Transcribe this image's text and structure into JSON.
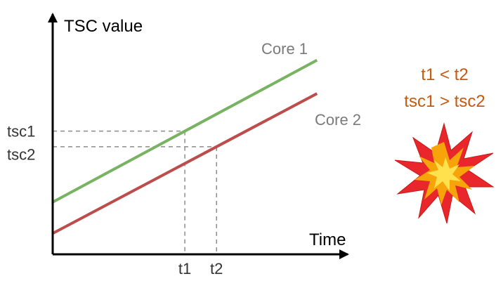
{
  "chart_data": {
    "type": "line",
    "title": "",
    "ylabel": "TSC value",
    "xlabel": "Time",
    "series": [
      {
        "name": "Core 1",
        "color": "#77b361",
        "x": [
          0,
          1
        ],
        "y": [
          0.25,
          0.93
        ]
      },
      {
        "name": "Core 2",
        "color": "#bd4c4c",
        "x": [
          0,
          1
        ],
        "y": [
          0.1,
          0.77
        ]
      }
    ],
    "x_ticks": [
      {
        "label": "t1",
        "value": 0.5
      },
      {
        "label": "t2",
        "value": 0.62
      }
    ],
    "y_ticks": [
      {
        "label": "tsc1",
        "value": 0.59
      },
      {
        "label": "tsc2",
        "value": 0.48
      }
    ],
    "xlim": [
      0,
      1.05
    ],
    "ylim": [
      0,
      1.05
    ],
    "grid": false
  },
  "annotation": {
    "line1": "t1 < t2",
    "line2": "tsc1 > tsc2",
    "color": "#c55a11",
    "icon": "collision-icon"
  }
}
